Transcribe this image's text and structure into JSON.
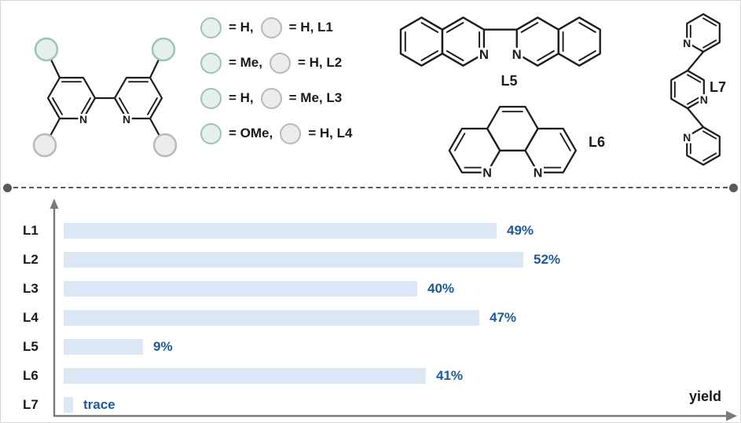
{
  "palette": {
    "line": "#1c1c1c",
    "text": "#1a1a1a",
    "green-fill": "#e5f0ea",
    "green-stroke": "#9cc3b3",
    "gray-fill": "#ececec",
    "gray-stroke": "#b9b9b9",
    "bar": "#dbe7f4",
    "value-blue": "#1b5a9b",
    "axis": "#7a7a7a",
    "divider": "#595959"
  },
  "scheme": {
    "atom_label": "N",
    "legend": [
      {
        "left": "= H,",
        "right": "= H, L1"
      },
      {
        "left": "= Me,",
        "right": "= H, L2"
      },
      {
        "left": "= H,",
        "right": "= Me, L3"
      },
      {
        "left": "= OMe,",
        "right": "= H, L4"
      }
    ],
    "labels": {
      "l5": "L5",
      "l6": "L6",
      "l7": "L7"
    }
  },
  "chart_data": {
    "type": "bar",
    "orientation": "horizontal",
    "categories": [
      "L1",
      "L2",
      "L3",
      "L4",
      "L5",
      "L6",
      "L7"
    ],
    "values": [
      49,
      52,
      40,
      47,
      9,
      41,
      null
    ],
    "value_labels": [
      "49%",
      "52%",
      "40%",
      "47%",
      "9%",
      "41%",
      "trace"
    ],
    "xlabel": "yield",
    "grid": false,
    "legend_position": "none"
  }
}
